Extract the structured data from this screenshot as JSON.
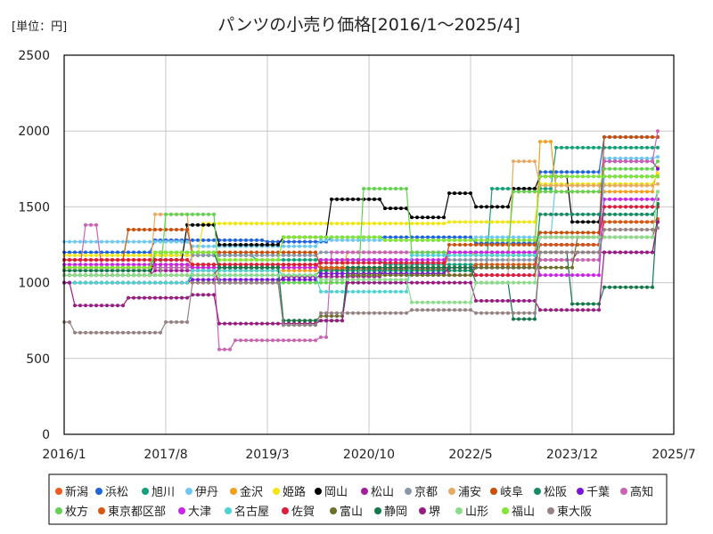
{
  "chart_data": {
    "type": "line",
    "title": "パンツの小売り価格[2016/1～2025/4]",
    "unit_label": "[単位：円]",
    "xlabel": "",
    "ylabel": "",
    "x_range": [
      "2016-01",
      "2025-07"
    ],
    "x_ticks": [
      "2016/1",
      "2017/8",
      "2019/3",
      "2020/10",
      "2022/5",
      "2023/12",
      "2025/7"
    ],
    "ylim": [
      0,
      2500
    ],
    "y_ticks": [
      "0",
      "500",
      "1000",
      "1500",
      "2000",
      "2500"
    ],
    "grid": true,
    "legend_position": "bottom",
    "series": [
      {
        "name": "新潟",
        "color": "#f05a1e",
        "points": [
          [
            "2016-01",
            1150
          ],
          [
            "2018-01",
            1120
          ],
          [
            "2020-01",
            1090
          ],
          [
            "2022-01",
            1200
          ],
          [
            "2023-06",
            1250
          ],
          [
            "2024-06",
            1400
          ],
          [
            "2025-04",
            1420
          ]
        ]
      },
      {
        "name": "浜松",
        "color": "#1e64dc",
        "points": [
          [
            "2016-01",
            1200
          ],
          [
            "2017-06",
            1280
          ],
          [
            "2019-03",
            1270
          ],
          [
            "2020-03",
            1300
          ],
          [
            "2022-06",
            1260
          ],
          [
            "2023-06",
            1730
          ],
          [
            "2024-06",
            1960
          ],
          [
            "2025-04",
            1960
          ]
        ]
      },
      {
        "name": "旭川",
        "color": "#14a078",
        "points": [
          [
            "2016-01",
            1100
          ],
          [
            "2017-06",
            1180
          ],
          [
            "2019-01",
            1150
          ],
          [
            "2021-01",
            1120
          ],
          [
            "2022-09",
            1620
          ],
          [
            "2023-09",
            1890
          ],
          [
            "2025-04",
            1890
          ]
        ]
      },
      {
        "name": "伊丹",
        "color": "#6ec8f0",
        "points": [
          [
            "2016-01",
            1270
          ],
          [
            "2018-01",
            1240
          ],
          [
            "2020-01",
            1280
          ],
          [
            "2022-06",
            1300
          ],
          [
            "2023-09",
            1700
          ],
          [
            "2024-06",
            1820
          ],
          [
            "2025-04",
            1830
          ]
        ]
      },
      {
        "name": "金沢",
        "color": "#f0a01e",
        "points": [
          [
            "2016-01",
            1000
          ],
          [
            "2018-06",
            1080
          ],
          [
            "2020-06",
            1200
          ],
          [
            "2022-06",
            1180
          ],
          [
            "2023-06",
            1930
          ],
          [
            "2023-09",
            1600
          ],
          [
            "2025-04",
            1760
          ]
        ]
      },
      {
        "name": "姫路",
        "color": "#f0e614",
        "points": [
          [
            "2016-01",
            1180
          ],
          [
            "2018-03",
            1390
          ],
          [
            "2020-01",
            1390
          ],
          [
            "2022-01",
            1400
          ],
          [
            "2023-06",
            1650
          ],
          [
            "2025-04",
            1720
          ]
        ]
      },
      {
        "name": "岡山",
        "color": "#000000",
        "points": [
          [
            "2016-01",
            1050
          ],
          [
            "2017-06",
            1150
          ],
          [
            "2017-12",
            1380
          ],
          [
            "2018-06",
            1250
          ],
          [
            "2019-06",
            1300
          ],
          [
            "2020-03",
            1550
          ],
          [
            "2021-01",
            1490
          ],
          [
            "2021-06",
            1430
          ],
          [
            "2022-01",
            1590
          ],
          [
            "2022-06",
            1500
          ],
          [
            "2023-01",
            1620
          ],
          [
            "2023-06",
            1700
          ],
          [
            "2023-12",
            1400
          ],
          [
            "2024-06",
            1700
          ],
          [
            "2025-04",
            1700
          ]
        ]
      },
      {
        "name": "松山",
        "color": "#a01e96",
        "points": [
          [
            "2016-01",
            1050
          ],
          [
            "2017-06",
            1080
          ],
          [
            "2018-06",
            1000
          ],
          [
            "2019-06",
            1040
          ],
          [
            "2021-01",
            1100
          ],
          [
            "2022-06",
            1050
          ],
          [
            "2023-06",
            1150
          ],
          [
            "2024-01",
            1200
          ],
          [
            "2025-04",
            1400
          ]
        ]
      },
      {
        "name": "京都",
        "color": "#8c96aa",
        "points": [
          [
            "2016-01",
            1100
          ],
          [
            "2018-01",
            1180
          ],
          [
            "2020-01",
            1200
          ],
          [
            "2022-01",
            1150
          ],
          [
            "2023-06",
            1300
          ],
          [
            "2024-06",
            1500
          ],
          [
            "2025-04",
            1600
          ]
        ]
      },
      {
        "name": "浦安",
        "color": "#e6aa64",
        "points": [
          [
            "2016-01",
            1050
          ],
          [
            "2017-06",
            1450
          ],
          [
            "2018-01",
            1100
          ],
          [
            "2020-01",
            1150
          ],
          [
            "2021-06",
            1050
          ],
          [
            "2023-01",
            1800
          ],
          [
            "2023-06",
            1640
          ],
          [
            "2025-04",
            1650
          ]
        ]
      },
      {
        "name": "岐阜",
        "color": "#c8500a",
        "points": [
          [
            "2016-01",
            1150
          ],
          [
            "2017-01",
            1350
          ],
          [
            "2018-01",
            1200
          ],
          [
            "2020-01",
            1100
          ],
          [
            "2022-01",
            1250
          ],
          [
            "2023-06",
            1330
          ],
          [
            "2024-06",
            1960
          ],
          [
            "2025-04",
            1960
          ]
        ]
      },
      {
        "name": "松阪",
        "color": "#148c64",
        "points": [
          [
            "2016-01",
            1000
          ],
          [
            "2018-01",
            1050
          ],
          [
            "2020-01",
            1080
          ],
          [
            "2022-06",
            1100
          ],
          [
            "2023-06",
            1450
          ],
          [
            "2025-04",
            1500
          ]
        ]
      },
      {
        "name": "千葉",
        "color": "#7814dc",
        "points": [
          [
            "2016-01",
            1000
          ],
          [
            "2018-01",
            1020
          ],
          [
            "2020-01",
            1060
          ],
          [
            "2022-01",
            1100
          ],
          [
            "2023-06",
            1250
          ],
          [
            "2024-06",
            1800
          ],
          [
            "2025-04",
            1750
          ]
        ]
      },
      {
        "name": "高知",
        "color": "#c864b4",
        "points": [
          [
            "2016-01",
            1100
          ],
          [
            "2016-05",
            1380
          ],
          [
            "2016-08",
            1100
          ],
          [
            "2018-06",
            560
          ],
          [
            "2018-09",
            620
          ],
          [
            "2020-01",
            640
          ],
          [
            "2020-03",
            1200
          ],
          [
            "2022-06",
            1200
          ],
          [
            "2023-06",
            1150
          ],
          [
            "2024-06",
            1800
          ],
          [
            "2025-04",
            2000
          ]
        ]
      },
      {
        "name": "枚方",
        "color": "#64d250",
        "points": [
          [
            "2016-01",
            1050
          ],
          [
            "2017-08",
            1450
          ],
          [
            "2018-06",
            1000
          ],
          [
            "2020-06",
            1000
          ],
          [
            "2020-09",
            1620
          ],
          [
            "2021-06",
            1200
          ],
          [
            "2023-01",
            1600
          ],
          [
            "2024-06",
            1750
          ],
          [
            "2025-04",
            1800
          ]
        ]
      },
      {
        "name": "東京都区部",
        "color": "#d25a14",
        "points": [
          [
            "2016-01",
            1100
          ],
          [
            "2017-06",
            1120
          ],
          [
            "2020-01",
            1100
          ],
          [
            "2022-06",
            1120
          ],
          [
            "2023-06",
            1250
          ],
          [
            "2024-06",
            1400
          ],
          [
            "2025-04",
            1400
          ]
        ]
      },
      {
        "name": "大津",
        "color": "#c828e6",
        "points": [
          [
            "2016-01",
            1120
          ],
          [
            "2018-01",
            1100
          ],
          [
            "2020-01",
            1150
          ],
          [
            "2022-01",
            1200
          ],
          [
            "2023-06",
            1050
          ],
          [
            "2024-06",
            1550
          ],
          [
            "2025-04",
            1550
          ]
        ]
      },
      {
        "name": "名古屋",
        "color": "#50d2d2",
        "points": [
          [
            "2016-01",
            1000
          ],
          [
            "2018-01",
            1080
          ],
          [
            "2019-06",
            1050
          ],
          [
            "2020-01",
            940
          ],
          [
            "2021-06",
            1180
          ],
          [
            "2023-06",
            1200
          ],
          [
            "2024-06",
            1700
          ],
          [
            "2025-04",
            1700
          ]
        ]
      },
      {
        "name": "佐賀",
        "color": "#dc1e3c",
        "points": [
          [
            "2016-01",
            1150
          ],
          [
            "2018-01",
            1120
          ],
          [
            "2020-01",
            1130
          ],
          [
            "2022-01",
            1050
          ],
          [
            "2023-06",
            1300
          ],
          [
            "2024-06",
            1500
          ],
          [
            "2025-04",
            1500
          ]
        ]
      },
      {
        "name": "富山",
        "color": "#6e6e2d",
        "points": [
          [
            "2016-01",
            1050
          ],
          [
            "2018-06",
            1100
          ],
          [
            "2019-06",
            750
          ],
          [
            "2020-01",
            780
          ],
          [
            "2020-06",
            1050
          ],
          [
            "2022-06",
            1100
          ],
          [
            "2024-01",
            1300
          ],
          [
            "2025-04",
            1400
          ]
        ]
      },
      {
        "name": "静岡",
        "color": "#14784b",
        "points": [
          [
            "2016-01",
            1080
          ],
          [
            "2017-06",
            1200
          ],
          [
            "2018-06",
            1100
          ],
          [
            "2019-06",
            750
          ],
          [
            "2020-06",
            1100
          ],
          [
            "2022-06",
            1000
          ],
          [
            "2023-01",
            760
          ],
          [
            "2023-06",
            1200
          ],
          [
            "2023-12",
            860
          ],
          [
            "2024-06",
            970
          ],
          [
            "2025-01",
            970
          ],
          [
            "2025-04",
            1520
          ]
        ]
      },
      {
        "name": "堺",
        "color": "#961e82",
        "points": [
          [
            "2016-01",
            1000
          ],
          [
            "2016-03",
            850
          ],
          [
            "2017-01",
            900
          ],
          [
            "2018-01",
            920
          ],
          [
            "2018-06",
            730
          ],
          [
            "2020-01",
            750
          ],
          [
            "2020-06",
            1000
          ],
          [
            "2022-06",
            880
          ],
          [
            "2023-06",
            820
          ],
          [
            "2024-01",
            820
          ],
          [
            "2024-06",
            1200
          ],
          [
            "2025-04",
            1400
          ]
        ]
      },
      {
        "name": "山形",
        "color": "#8cdc8c",
        "points": [
          [
            "2016-01",
            1050
          ],
          [
            "2018-01",
            1050
          ],
          [
            "2020-01",
            1020
          ],
          [
            "2021-06",
            870
          ],
          [
            "2022-06",
            1000
          ],
          [
            "2023-06",
            1300
          ],
          [
            "2025-04",
            1600
          ]
        ]
      },
      {
        "name": "福山",
        "color": "#82e632",
        "points": [
          [
            "2016-01",
            1100
          ],
          [
            "2017-06",
            1200
          ],
          [
            "2018-06",
            1150
          ],
          [
            "2019-06",
            1300
          ],
          [
            "2021-01",
            1280
          ],
          [
            "2023-06",
            1700
          ],
          [
            "2025-04",
            1700
          ]
        ]
      },
      {
        "name": "東大阪",
        "color": "#968282",
        "points": [
          [
            "2016-01",
            740
          ],
          [
            "2016-03",
            670
          ],
          [
            "2017-06",
            670
          ],
          [
            "2017-08",
            740
          ],
          [
            "2018-01",
            1000
          ],
          [
            "2019-06",
            720
          ],
          [
            "2020-01",
            800
          ],
          [
            "2021-06",
            820
          ],
          [
            "2022-06",
            800
          ],
          [
            "2023-06",
            1200
          ],
          [
            "2024-06",
            1350
          ],
          [
            "2025-04",
            1360
          ]
        ]
      }
    ]
  }
}
